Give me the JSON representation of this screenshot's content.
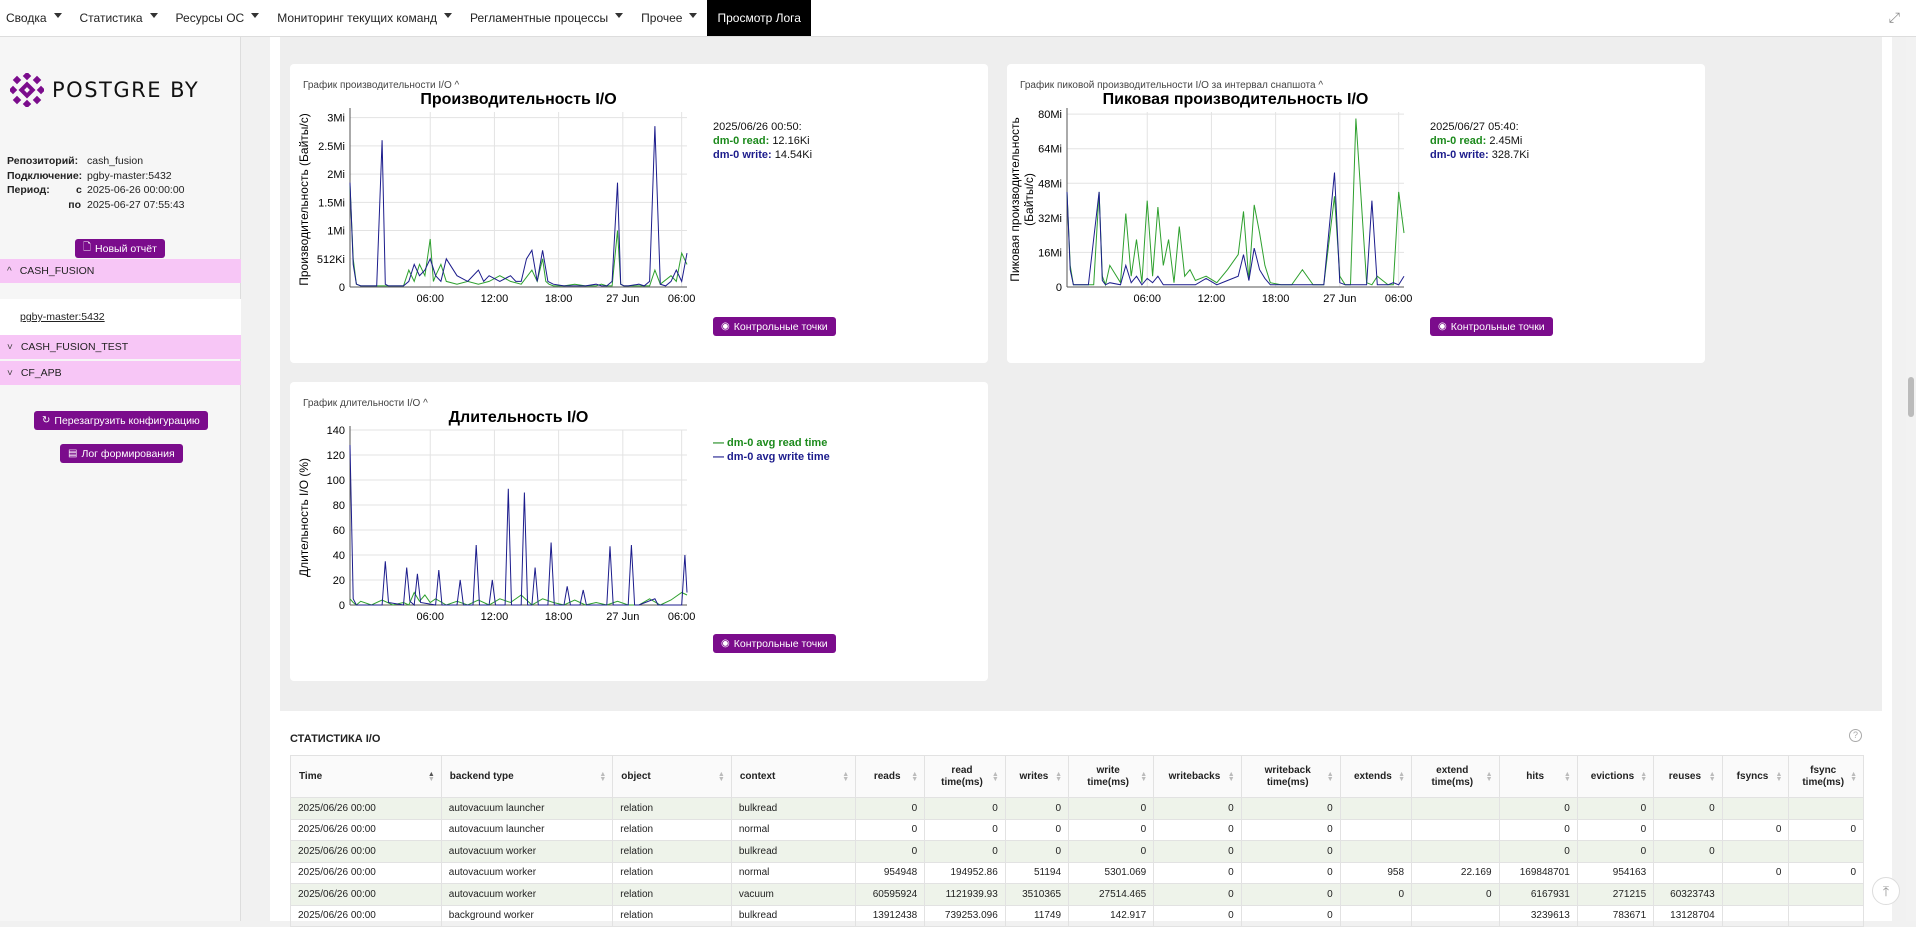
{
  "topbar": {
    "menu": [
      {
        "label": "Сводка",
        "caret": true
      },
      {
        "label": "Статистика",
        "caret": true
      },
      {
        "label": "Ресурсы ОС",
        "caret": true
      },
      {
        "label": "Мониторинг текущих команд",
        "caret": true
      },
      {
        "label": "Регламентные процессы",
        "caret": true
      },
      {
        "label": "Прочее",
        "caret": true
      },
      {
        "label": "Просмотр Лога",
        "caret": false,
        "active": true
      }
    ]
  },
  "sidebar": {
    "logo_text": "POSTGRE BY",
    "brand_color": "#7b0c8c",
    "info": {
      "repo_label": "Репозиторий:",
      "repo_value": "cash_fusion",
      "conn_label": "Подключение:",
      "conn_value": "pgby-master:5432",
      "period_label": "Период:",
      "from_label": "с",
      "from_value": "2025-06-26 00:00:00",
      "to_label": "по",
      "to_value": "2025-06-27 07:55:43"
    },
    "new_report": "Новый отчёт",
    "groups": [
      {
        "label": "CASH_FUSION",
        "expanded": true
      },
      {
        "label": "CASH_FUSION_TEST",
        "expanded": false
      },
      {
        "label": "CF_APB",
        "expanded": false
      }
    ],
    "subitem": "pgby-master:5432",
    "reload_config": "Перезагрузить конфигурацию",
    "build_log": "Лог формирования"
  },
  "cards": {
    "io_perf": {
      "caption": "График производительности I/O",
      "legend_date": "2025/06/26 00:50:",
      "legend_read_label": "dm-0 read:",
      "legend_read_value": "12.16Ki",
      "legend_write_label": "dm-0 write:",
      "legend_write_value": "14.54Ki",
      "button": "Контрольные точки"
    },
    "io_peak": {
      "caption": "График пиковой производительности I/O за интервал снапшота",
      "legend_date": "2025/06/27 05:40:",
      "legend_read_label": "dm-0 read:",
      "legend_read_value": "2.45Mi",
      "legend_write_label": "dm-0 write:",
      "legend_write_value": "328.7Ki",
      "button": "Контрольные точки"
    },
    "io_dur": {
      "caption": "График длительности I/O",
      "legend_read": "— dm-0 avg read time",
      "legend_write": "— dm-0 avg write time",
      "button": "Контрольные точки"
    }
  },
  "chart_data": [
    {
      "type": "line",
      "title": "Производительность I/O",
      "ylabel": "Производительность (Байты/с)",
      "xticks": [
        "06:00",
        "12:00",
        "18:00",
        "27 Jun",
        "06:00"
      ],
      "yticks": [
        "0",
        "512Ki",
        "1Mi",
        "1.5Mi",
        "2Mi",
        "2.5Mi",
        "3Mi"
      ],
      "ylim": [
        0,
        3.1
      ],
      "xlim": [
        0,
        31.5
      ],
      "grid": true,
      "series": [
        {
          "name": "dm-0 read",
          "color": "#2ea02e",
          "x": [
            0,
            0.3,
            0.6,
            1,
            2,
            3,
            4,
            5,
            5.5,
            6,
            6.5,
            7,
            7.5,
            7.8,
            8,
            8.5,
            9,
            10,
            11,
            12,
            13,
            14,
            15,
            16,
            17,
            17.5,
            18,
            18.3,
            18.6,
            19,
            20,
            21,
            22,
            23,
            23.5,
            24,
            24.5,
            25,
            25.3,
            25.6,
            26,
            27,
            28,
            28.5,
            29,
            30,
            30.5,
            31,
            31.5
          ],
          "y": [
            1.8,
            0.5,
            0.05,
            0.02,
            0.02,
            0.02,
            0.02,
            0.02,
            0.3,
            0.1,
            0.4,
            0.2,
            0.85,
            0.1,
            0.2,
            0.4,
            0.1,
            0.05,
            0.1,
            0.05,
            0.1,
            0.2,
            0.1,
            0.05,
            0.3,
            0.1,
            0.5,
            0.1,
            0.05,
            0.02,
            0.02,
            0.05,
            0.02,
            0.02,
            0.05,
            0.02,
            0.02,
            1.0,
            0.05,
            0.02,
            0.02,
            0.02,
            0.02,
            0.3,
            0.05,
            0.2,
            0.1,
            0.6,
            0.4
          ]
        },
        {
          "name": "dm-0 write",
          "color": "#1c1c8c",
          "x": [
            0,
            0.3,
            0.6,
            1,
            2,
            2.5,
            3,
            3.3,
            3.6,
            4,
            5,
            5.5,
            6,
            6.5,
            7,
            7.5,
            8,
            8.5,
            9,
            10,
            11,
            12,
            12.5,
            13,
            14,
            15,
            15.5,
            16,
            16.5,
            17,
            17.5,
            18,
            18.5,
            19,
            20,
            21,
            22,
            23,
            23.5,
            24,
            24.5,
            25,
            25.3,
            25.6,
            26,
            27,
            27.5,
            28,
            28.5,
            29,
            29.5,
            30,
            30.5,
            31,
            31.5
          ],
          "y": [
            1.85,
            0.4,
            0.05,
            0.02,
            0.02,
            0.02,
            2.6,
            0.05,
            0.02,
            0.02,
            0.02,
            0.1,
            0.4,
            0.2,
            0.3,
            0.5,
            0.2,
            0.1,
            0.5,
            0.2,
            0.1,
            0.3,
            0.1,
            0.2,
            0.1,
            0.2,
            0.1,
            0.1,
            0.5,
            0.65,
            0.1,
            0.65,
            0.1,
            0.05,
            0.02,
            0.02,
            0.02,
            0.05,
            0.02,
            0.02,
            0.1,
            1.85,
            0.05,
            0.02,
            0.02,
            0.05,
            0.02,
            0.1,
            2.85,
            0.05,
            0.02,
            0.1,
            0.3,
            0.1,
            0.6
          ]
        }
      ]
    },
    {
      "type": "line",
      "title": "Пиковая производительность I/O",
      "ylabel": "Пиковая производительность (Байты/с)",
      "xticks": [
        "06:00",
        "12:00",
        "18:00",
        "27 Jun",
        "06:00"
      ],
      "yticks": [
        "0",
        "16Mi",
        "32Mi",
        "48Mi",
        "64Mi",
        "80Mi"
      ],
      "ylim": [
        0,
        81
      ],
      "xlim": [
        0,
        31.5
      ],
      "grid": true,
      "series": [
        {
          "name": "dm-0 read",
          "color": "#2ea02e",
          "x": [
            0,
            0.3,
            0.6,
            1,
            2,
            2.5,
            3,
            3.3,
            3.6,
            4,
            5,
            5.5,
            6,
            6.5,
            7,
            7.5,
            8,
            8.5,
            9,
            9.5,
            10,
            10.5,
            11,
            11.5,
            12,
            13,
            14,
            15,
            16,
            16.5,
            17,
            17.5,
            18,
            18.5,
            19,
            20,
            21,
            22,
            23,
            23.5,
            24,
            25,
            25.5,
            26,
            26.5,
            27,
            28,
            28.5,
            29,
            30,
            30.5,
            31,
            31.5
          ],
          "y": [
            44,
            10,
            1,
            1,
            1,
            1,
            44,
            5,
            1,
            10,
            2,
            34,
            5,
            22,
            2,
            40,
            5,
            37,
            10,
            22,
            2,
            28,
            5,
            8,
            3,
            5,
            2,
            8,
            15,
            35,
            3,
            38,
            25,
            10,
            2,
            1,
            1,
            8,
            1,
            1,
            1,
            42,
            5,
            1,
            1,
            78,
            2,
            1,
            5,
            1,
            1,
            44,
            25
          ]
        },
        {
          "name": "dm-0 write",
          "color": "#1c1c8c",
          "x": [
            0,
            0.3,
            0.6,
            1,
            2,
            3,
            3.3,
            3.6,
            4,
            5,
            5.5,
            6,
            6.5,
            7,
            7.5,
            8,
            8.5,
            9,
            10,
            11,
            12,
            13,
            14,
            15,
            16,
            16.5,
            17,
            17.5,
            18,
            18.5,
            19,
            20,
            21,
            22,
            23,
            23.5,
            24,
            25,
            25.5,
            26,
            27,
            27.5,
            28,
            28.5,
            29,
            30,
            30.5,
            31,
            31.5
          ],
          "y": [
            44,
            8,
            1,
            1,
            1,
            44,
            3,
            1,
            2,
            1,
            10,
            2,
            5,
            1,
            4,
            2,
            5,
            1,
            1,
            1,
            1,
            4,
            1,
            3,
            5,
            15,
            3,
            18,
            8,
            4,
            1,
            1,
            1,
            1,
            1,
            1,
            1,
            53,
            2,
            1,
            1,
            1,
            1,
            40,
            1,
            1,
            2,
            1,
            5
          ]
        }
      ]
    },
    {
      "type": "line",
      "title": "Длительность I/O",
      "ylabel": "Длительность I/O (%)",
      "xticks": [
        "06:00",
        "12:00",
        "18:00",
        "27 Jun",
        "06:00"
      ],
      "yticks": [
        "0",
        "20",
        "40",
        "60",
        "80",
        "100",
        "120",
        "140"
      ],
      "ylim": [
        0,
        140
      ],
      "xlim": [
        0,
        31.5
      ],
      "grid": true,
      "series": [
        {
          "name": "dm-0 avg read time",
          "color": "#2ea02e",
          "x": [
            0,
            0.3,
            0.6,
            1,
            2,
            3,
            4,
            5,
            5.5,
            6,
            6.5,
            7,
            7.5,
            8,
            9,
            10,
            11,
            12,
            13,
            14,
            15,
            16,
            17,
            18,
            19,
            20,
            21,
            22,
            23,
            24,
            25,
            26,
            27,
            28,
            29,
            30,
            31,
            31.5
          ],
          "y": [
            5,
            2,
            0,
            3,
            0,
            4,
            0,
            2,
            0,
            10,
            3,
            8,
            2,
            5,
            0,
            3,
            0,
            4,
            0,
            5,
            2,
            8,
            0,
            5,
            2,
            0,
            4,
            0,
            2,
            0,
            3,
            0,
            0,
            5,
            0,
            4,
            10,
            8
          ]
        },
        {
          "name": "dm-0 avg write time",
          "color": "#1c1c8c",
          "x": [
            0,
            0.3,
            0.6,
            1,
            2,
            3,
            3.3,
            3.6,
            5,
            5.3,
            5.6,
            6,
            6.3,
            6.6,
            8,
            8.3,
            8.6,
            10,
            10.3,
            10.6,
            11.5,
            11.8,
            12.1,
            13,
            13.3,
            13.6,
            14.5,
            14.8,
            15.1,
            16,
            16.3,
            16.6,
            17,
            17.3,
            17.6,
            18.5,
            18.8,
            19.1,
            20,
            20.3,
            20.6,
            21.5,
            21.8,
            22.1,
            24,
            24.3,
            24.6,
            26,
            26.3,
            26.6,
            27,
            28.5,
            28.8,
            29.1,
            30,
            31,
            31.3,
            31.5
          ],
          "y": [
            128,
            5,
            0,
            0,
            0,
            0,
            35,
            2,
            0,
            30,
            3,
            0,
            25,
            2,
            0,
            28,
            0,
            0,
            20,
            0,
            0,
            48,
            0,
            0,
            20,
            0,
            0,
            93,
            0,
            0,
            90,
            0,
            0,
            30,
            0,
            0,
            50,
            0,
            0,
            15,
            0,
            0,
            12,
            0,
            0,
            47,
            0,
            0,
            48,
            0,
            0,
            5,
            0,
            0,
            0,
            0,
            40,
            10
          ]
        }
      ]
    }
  ],
  "stat": {
    "title": "СТАТИСТИКА I/O",
    "headers": [
      "Time",
      "backend type",
      "object",
      "context",
      "reads",
      "read time(ms)",
      "writes",
      "write time(ms)",
      "writebacks",
      "writeback time(ms)",
      "extends",
      "extend time(ms)",
      "hits",
      "evictions",
      "reuses",
      "fsyncs",
      "fsync time(ms)"
    ],
    "rows": [
      [
        "2025/06/26 00:00",
        "autovacuum launcher",
        "relation",
        "bulkread",
        "0",
        "0",
        "0",
        "0",
        "0",
        "0",
        "",
        "",
        "0",
        "0",
        "0",
        "",
        ""
      ],
      [
        "2025/06/26 00:00",
        "autovacuum launcher",
        "relation",
        "normal",
        "0",
        "0",
        "0",
        "0",
        "0",
        "0",
        "",
        "",
        "0",
        "0",
        "",
        "0",
        "0"
      ],
      [
        "2025/06/26 00:00",
        "autovacuum worker",
        "relation",
        "bulkread",
        "0",
        "0",
        "0",
        "0",
        "0",
        "0",
        "",
        "",
        "0",
        "0",
        "0",
        "",
        ""
      ],
      [
        "2025/06/26 00:00",
        "autovacuum worker",
        "relation",
        "normal",
        "954948",
        "194952.86",
        "51194",
        "5301.069",
        "0",
        "0",
        "958",
        "22.169",
        "169848701",
        "954163",
        "",
        "0",
        "0"
      ],
      [
        "2025/06/26 00:00",
        "autovacuum worker",
        "relation",
        "vacuum",
        "60595924",
        "1121939.93",
        "3510365",
        "27514.465",
        "0",
        "0",
        "0",
        "0",
        "6167931",
        "271215",
        "60323743",
        "",
        ""
      ],
      [
        "2025/06/26 00:00",
        "background worker",
        "relation",
        "bulkread",
        "13912438",
        "739253.096",
        "11749",
        "142.917",
        "0",
        "0",
        "",
        "",
        "3239613",
        "783671",
        "13128704",
        "",
        ""
      ]
    ]
  }
}
